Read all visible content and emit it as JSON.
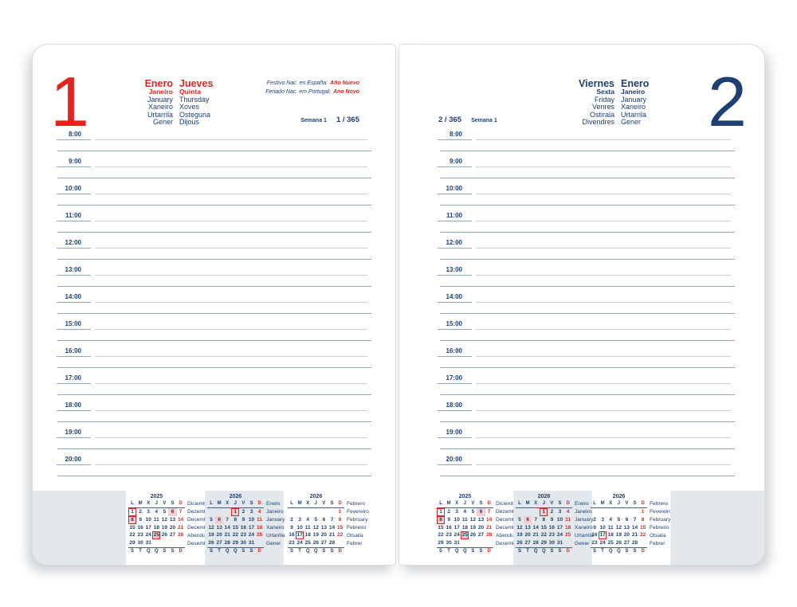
{
  "colors": {
    "navy": "#1e3f72",
    "red": "#e2231e",
    "pink": "#f7cdd2",
    "band": "#e3e8ec"
  },
  "pages": [
    {
      "side": "left",
      "day_number": "1",
      "month_names": [
        "Enero",
        "Janeiro",
        "January",
        "Xaneiro",
        "Urtarrila",
        "Gener"
      ],
      "day_names": [
        "Jueves",
        "Quinta",
        "Thursday",
        "Xoves",
        "Osteguna",
        "Dijous"
      ],
      "holiday_notes": [
        {
          "prefix": "Festivo Nac. en España:",
          "name": "Año Nuevo"
        },
        {
          "prefix": "Feriado Nac. em Portugal:",
          "name": "Ano Novo"
        }
      ],
      "week_label": "Semana 1",
      "day_of_year": "1 / 365",
      "hours": [
        "8:00",
        "9:00",
        "10:00",
        "11:00",
        "12:00",
        "13:00",
        "14:00",
        "15:00",
        "16:00",
        "17:00",
        "18:00",
        "19:00",
        "20:00"
      ]
    },
    {
      "side": "right",
      "day_number": "2",
      "month_names": [
        "Enero",
        "Janeiro",
        "January",
        "Xaneiro",
        "Urtarrila",
        "Gener"
      ],
      "day_names": [
        "Viernes",
        "Sexta",
        "Friday",
        "Venres",
        "Ostirala",
        "Divendres"
      ],
      "holiday_notes": [],
      "week_label": "Semana 1",
      "day_of_year": "2 / 365",
      "hours": [
        "8:00",
        "9:00",
        "10:00",
        "11:00",
        "12:00",
        "13:00",
        "14:00",
        "15:00",
        "16:00",
        "17:00",
        "18:00",
        "19:00",
        "20:00"
      ]
    }
  ],
  "mini_calendars": [
    {
      "year": "2025",
      "weekdays_top": [
        "L",
        "M",
        "X",
        "J",
        "V",
        "S",
        "D"
      ],
      "weekdays_bottom": [
        "S",
        "T",
        "Q",
        "Q",
        "S",
        "S",
        "D"
      ],
      "weeks": [
        [
          "1",
          "2",
          "3",
          "4",
          "5",
          "6",
          "7"
        ],
        [
          "8",
          "9",
          "10",
          "11",
          "12",
          "13",
          "14"
        ],
        [
          "15",
          "16",
          "17",
          "18",
          "19",
          "20",
          "21"
        ],
        [
          "22",
          "23",
          "24",
          "25",
          "26",
          "27",
          "28"
        ],
        [
          "29",
          "30",
          "31",
          "",
          "",
          "",
          ""
        ]
      ],
      "boxed": [
        "1",
        "8",
        "25"
      ],
      "filled": [
        "6",
        "8",
        "25"
      ],
      "labels": [
        "Diciembre",
        "Dezembro",
        "December",
        "Decembro",
        "Abendua",
        "Desembre"
      ]
    },
    {
      "year": "2026",
      "weekdays_top": [
        "L",
        "M",
        "X",
        "J",
        "V",
        "S",
        "D"
      ],
      "weekdays_bottom": [
        "S",
        "T",
        "Q",
        "Q",
        "S",
        "S",
        "D"
      ],
      "weeks": [
        [
          "",
          "",
          "",
          "1",
          "2",
          "3",
          "4"
        ],
        [
          "5",
          "6",
          "7",
          "8",
          "9",
          "10",
          "11"
        ],
        [
          "12",
          "13",
          "14",
          "15",
          "16",
          "17",
          "18"
        ],
        [
          "19",
          "20",
          "21",
          "22",
          "23",
          "24",
          "25"
        ],
        [
          "26",
          "27",
          "28",
          "29",
          "30",
          "31",
          ""
        ]
      ],
      "boxed": [
        "1"
      ],
      "filled": [
        "1",
        "6"
      ],
      "labels": [
        "Enero",
        "Janeiro",
        "January",
        "Xaneiro",
        "Urtarrila",
        "Gener"
      ]
    },
    {
      "year": "2026",
      "weekdays_top": [
        "L",
        "M",
        "X",
        "J",
        "V",
        "S",
        "D"
      ],
      "weekdays_bottom": [
        "S",
        "T",
        "Q",
        "Q",
        "S",
        "S",
        "D"
      ],
      "weeks": [
        [
          "",
          "",
          "",
          "",
          "",
          "",
          "1"
        ],
        [
          "2",
          "3",
          "4",
          "5",
          "6",
          "7",
          "8"
        ],
        [
          "9",
          "10",
          "11",
          "12",
          "13",
          "14",
          "15"
        ],
        [
          "16",
          "17",
          "18",
          "19",
          "20",
          "21",
          "22"
        ],
        [
          "23",
          "24",
          "25",
          "26",
          "27",
          "28",
          ""
        ]
      ],
      "boxed": [
        "17"
      ],
      "filled": [],
      "labels": [
        "Febrero",
        "Fevereiro",
        "February",
        "Febreiro",
        "Otsaila",
        "Febrer"
      ]
    }
  ]
}
